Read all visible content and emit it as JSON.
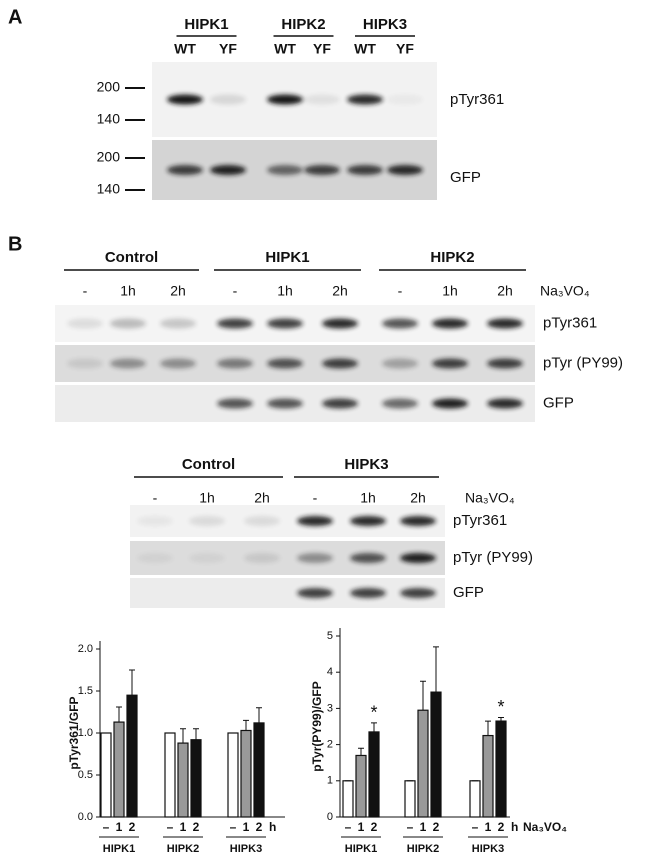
{
  "panel_a": {
    "label": "A",
    "groups": [
      {
        "name": "HIPK1",
        "lanes": [
          "WT",
          "YF"
        ]
      },
      {
        "name": "HIPK2",
        "lanes": [
          "WT",
          "YF"
        ]
      },
      {
        "name": "HIPK3",
        "lanes": [
          "WT",
          "YF"
        ]
      }
    ],
    "markers_top": [
      200,
      140
    ],
    "markers_bottom": [
      200,
      140
    ],
    "blots": [
      "pTyr361",
      "GFP"
    ]
  },
  "panel_b": {
    "label": "B",
    "top": {
      "groups": [
        {
          "name": "Control",
          "lanes": [
            "-",
            "1h",
            "2h"
          ]
        },
        {
          "name": "HIPK1",
          "lanes": [
            "-",
            "1h",
            "2h"
          ]
        },
        {
          "name": "HIPK2",
          "lanes": [
            "-",
            "1h",
            "2h"
          ]
        }
      ],
      "treatment": "Na₃VO₄",
      "blots": [
        "pTyr361",
        "pTyr (PY99)",
        "GFP"
      ]
    },
    "bottom": {
      "groups": [
        {
          "name": "Control",
          "lanes": [
            "-",
            "1h",
            "2h"
          ]
        },
        {
          "name": "HIPK3",
          "lanes": [
            "-",
            "1h",
            "2h"
          ]
        }
      ],
      "treatment": "Na₃VO₄",
      "blots": [
        "pTyr361",
        "pTyr (PY99)",
        "GFP"
      ]
    }
  },
  "chart_data": [
    {
      "type": "bar",
      "y_label": "pTyr361/GFP",
      "categories": [
        "HIPK1",
        "HIPK2",
        "HIPK3"
      ],
      "series": [
        {
          "name": "–",
          "color": "#ffffff",
          "values": [
            1.0,
            1.0,
            1.0
          ],
          "errors": [
            0,
            0,
            0
          ]
        },
        {
          "name": "1",
          "color": "#999999",
          "values": [
            1.13,
            0.88,
            1.03
          ],
          "errors": [
            0.18,
            0.17,
            0.12
          ]
        },
        {
          "name": "2",
          "color": "#111111",
          "values": [
            1.45,
            0.92,
            1.12
          ],
          "errors": [
            0.3,
            0.13,
            0.18
          ]
        }
      ],
      "ylim": [
        0,
        2
      ],
      "yticks": [
        {
          "value": 0,
          "label": "0.0"
        },
        0.5,
        {
          "value": 1,
          "label": "1.0"
        },
        1.5,
        {
          "value": 2,
          "label": "2.0"
        }
      ],
      "x_unit": "h"
    },
    {
      "type": "bar",
      "y_label": "pTyr(PY99)/GFP",
      "categories": [
        "HIPK1",
        "HIPK2",
        "HIPK3"
      ],
      "series": [
        {
          "name": "–",
          "color": "#ffffff",
          "values": [
            1,
            1,
            1
          ],
          "errors": [
            0,
            0,
            0
          ]
        },
        {
          "name": "1",
          "color": "#999999",
          "values": [
            1.7,
            2.95,
            2.25
          ],
          "errors": [
            0.2,
            0.8,
            0.4
          ]
        },
        {
          "name": "2",
          "color": "#111111",
          "values": [
            2.35,
            3.45,
            2.65
          ],
          "errors": [
            0.25,
            1.25,
            0.1
          ],
          "annotations": [
            "*",
            null,
            "*"
          ]
        }
      ],
      "ylim": [
        0,
        5
      ],
      "yticks": [
        0,
        1,
        2,
        3,
        4,
        5
      ],
      "x_unit": "h",
      "treatment": "Na₃VO₄"
    }
  ]
}
